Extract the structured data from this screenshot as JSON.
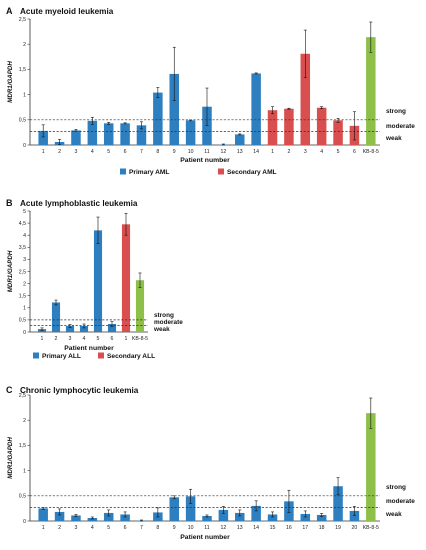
{
  "colors": {
    "blue": "#2e7fc0",
    "red": "#d94f4f",
    "green": "#8ec049",
    "axis": "#333333",
    "dash": "#333333"
  },
  "chart_data": [
    {
      "panel_letter": "A",
      "title": "Acute myeloid leukemia",
      "type": "bar",
      "ylabel": "MDR1/GAPDH",
      "xlabel": "Patient number",
      "ylim": [
        0,
        2.5
      ],
      "yticks": [
        "0",
        "0,5",
        "1",
        "1,5",
        "2",
        "2,5"
      ],
      "ytick_values": [
        0,
        0.5,
        1,
        1.5,
        2,
        2.5
      ],
      "categories": [
        "1",
        "2",
        "3",
        "4",
        "5",
        "6",
        "7",
        "8",
        "9",
        "10",
        "11",
        "12",
        "13",
        "14",
        "1",
        "2",
        "3",
        "4",
        "5",
        "6",
        "KB-8-5"
      ],
      "values": [
        0.28,
        0.06,
        0.29,
        0.48,
        0.43,
        0.43,
        0.39,
        1.04,
        1.41,
        0.49,
        0.76,
        0.01,
        0.21,
        1.42,
        0.69,
        0.72,
        1.81,
        0.74,
        0.49,
        0.38,
        2.14
      ],
      "errors": [
        0.12,
        0.05,
        0.02,
        0.07,
        0.02,
        0.01,
        0.07,
        0.1,
        0.53,
        0.01,
        0.37,
        0.01,
        0.01,
        0.01,
        0.07,
        0.01,
        0.47,
        0.02,
        0.04,
        0.28,
        0.3
      ],
      "groups": [
        "blue",
        "blue",
        "blue",
        "blue",
        "blue",
        "blue",
        "blue",
        "blue",
        "blue",
        "blue",
        "blue",
        "blue",
        "blue",
        "blue",
        "red",
        "red",
        "red",
        "red",
        "red",
        "red",
        "green"
      ],
      "thresholds": [
        0.5,
        0.27
      ],
      "threshold_labels": [
        "strong",
        "moderate",
        "weak"
      ],
      "legend": [
        {
          "label": "Primary AML",
          "color": "blue"
        },
        {
          "label": "Secondary AML",
          "color": "red"
        }
      ]
    },
    {
      "panel_letter": "B",
      "title": "Acute lymphoblastic leukemia",
      "type": "bar",
      "ylabel": "MDR1/GAPDH",
      "xlabel": "Patient number",
      "ylim": [
        0,
        5
      ],
      "yticks": [
        "0",
        "0,5",
        "1",
        "1,5",
        "2",
        "2,5",
        "3",
        "3,5",
        "4",
        "4,5",
        "5"
      ],
      "ytick_values": [
        0,
        0.5,
        1,
        1.5,
        2,
        2.5,
        3,
        3.5,
        4,
        4.5,
        5
      ],
      "categories": [
        "1",
        "2",
        "3",
        "4",
        "5",
        "6",
        "1",
        "KB-8-5"
      ],
      "values": [
        0.12,
        1.22,
        0.25,
        0.25,
        4.2,
        0.33,
        4.45,
        2.14
      ],
      "errors": [
        0.05,
        0.1,
        0.06,
        0.08,
        0.55,
        0.1,
        0.45,
        0.3
      ],
      "groups": [
        "blue",
        "blue",
        "blue",
        "blue",
        "blue",
        "blue",
        "red",
        "green"
      ],
      "thresholds": [
        0.5,
        0.27
      ],
      "threshold_labels": [
        "strong",
        "moderate",
        "weak"
      ],
      "legend": [
        {
          "label": "Primary ALL",
          "color": "blue"
        },
        {
          "label": "Secondary ALL",
          "color": "red"
        }
      ]
    },
    {
      "panel_letter": "C",
      "title": "Chronic lymphocytic leukemia",
      "type": "bar",
      "ylabel": "MDR1/GAPDH",
      "xlabel": "Patient number",
      "ylim": [
        0,
        2.5
      ],
      "yticks": [
        "0",
        "0,5",
        "1",
        "1,5",
        "2",
        "2,5"
      ],
      "ytick_values": [
        0,
        0.5,
        1,
        1.5,
        2,
        2.5
      ],
      "categories": [
        "1",
        "2",
        "3",
        "4",
        "5",
        "6",
        "7",
        "8",
        "9",
        "10",
        "11",
        "12",
        "13",
        "14",
        "15",
        "16",
        "17",
        "18",
        "19",
        "20",
        "KB-8-5"
      ],
      "values": [
        0.25,
        0.18,
        0.11,
        0.06,
        0.16,
        0.13,
        0.01,
        0.17,
        0.47,
        0.49,
        0.1,
        0.22,
        0.16,
        0.3,
        0.13,
        0.39,
        0.14,
        0.12,
        0.69,
        0.2,
        2.14
      ],
      "errors": [
        0.02,
        0.06,
        0.02,
        0.02,
        0.06,
        0.05,
        0.01,
        0.09,
        0.03,
        0.14,
        0.02,
        0.07,
        0.06,
        0.1,
        0.05,
        0.22,
        0.06,
        0.03,
        0.17,
        0.09,
        0.3
      ],
      "groups": [
        "blue",
        "blue",
        "blue",
        "blue",
        "blue",
        "blue",
        "blue",
        "blue",
        "blue",
        "blue",
        "blue",
        "blue",
        "blue",
        "blue",
        "blue",
        "blue",
        "blue",
        "blue",
        "blue",
        "blue",
        "green"
      ],
      "thresholds": [
        0.5,
        0.27
      ],
      "threshold_labels": [
        "strong",
        "moderate",
        "weak"
      ],
      "legend": []
    }
  ]
}
